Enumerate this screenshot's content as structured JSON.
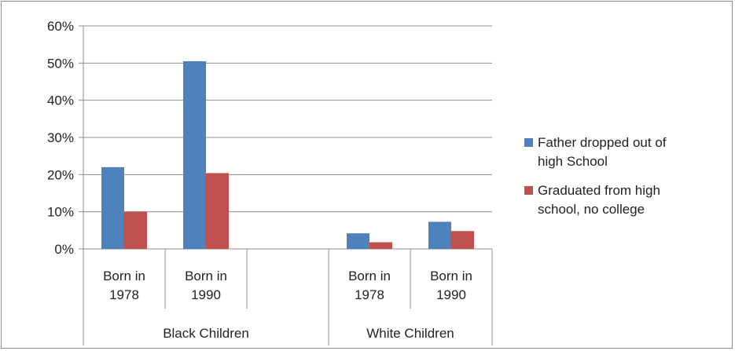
{
  "chart_data": {
    "type": "bar",
    "title": "",
    "xlabel": "",
    "ylabel": "",
    "ylim": [
      0,
      60
    ],
    "y_ticks": [
      "0%",
      "10%",
      "20%",
      "30%",
      "40%",
      "50%",
      "60%"
    ],
    "grid": true,
    "legend_position": "right",
    "groups": [
      {
        "label": "Black Children",
        "categories": [
          "Born in|1978",
          "Born in|1990",
          ""
        ]
      },
      {
        "label": "White Children",
        "categories": [
          "Born in|1978",
          "Born in|1990"
        ]
      }
    ],
    "categories": [
      "Born in 1978",
      "Born in 1990",
      "",
      "Born in 1978",
      "Born in 1990"
    ],
    "series": [
      {
        "name": "Father dropped out of high School",
        "legend_lines": [
          "Father dropped out of",
          "high School"
        ],
        "color": "#4f81bd",
        "values": [
          22,
          50.5,
          null,
          4.2,
          7.3
        ]
      },
      {
        "name": "Graduated from high school, no college",
        "legend_lines": [
          "Graduated from high",
          "school, no college"
        ],
        "color": "#c0504d",
        "values": [
          10,
          20.4,
          null,
          1.8,
          4.8
        ]
      }
    ]
  }
}
